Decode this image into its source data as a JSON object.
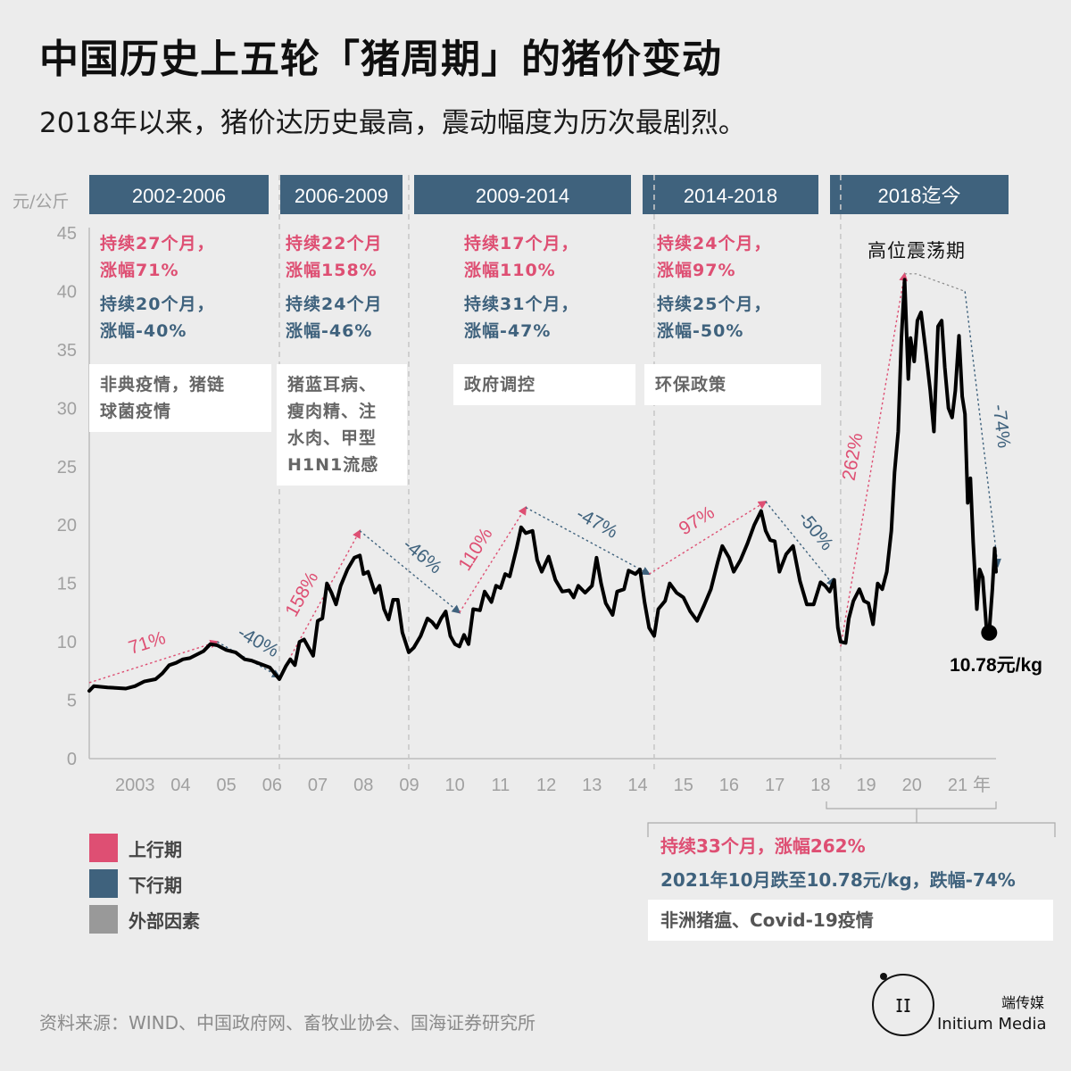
{
  "header": {
    "title": "中国历史上五轮「猪周期」的猪价变动",
    "subtitle": "2018年以来，猪价达历史最高，震动幅度为历次最剧烈。"
  },
  "colors": {
    "up": "#de4f73",
    "down": "#3f627d",
    "external": "#999999",
    "header_band": "#3f627d",
    "line": "#000000"
  },
  "cycles": [
    {
      "label": "2002-2006",
      "up_text": "持续27个月，\n涨幅71%",
      "down_text": "持续20个月，\n涨幅-40%",
      "external_text": "非典疫情，猪链\n球菌疫情"
    },
    {
      "label": "2006-2009",
      "up_text": "持续22个月\n涨幅158%",
      "down_text": "持续24个月\n涨幅-46%",
      "external_text": "猪蓝耳病、\n瘦肉精、注\n水肉、甲型\nH1N1流感"
    },
    {
      "label": "2009-2014",
      "up_text": "持续17个月，\n涨幅110%",
      "down_text": "持续31个月，\n涨幅-47%",
      "external_text": "政府调控"
    },
    {
      "label": "2014-2018",
      "up_text": "持续24个月，\n涨幅97%",
      "down_text": "持续25个月，\n涨幅-50%",
      "external_text": "环保政策"
    },
    {
      "label": "2018迄今",
      "phase_label": "高位震荡期"
    }
  ],
  "legend": [
    {
      "label": "上行期",
      "color": "#de4f73"
    },
    {
      "label": "下行期",
      "color": "#3f627d"
    },
    {
      "label": "外部因素",
      "color": "#999999"
    }
  ],
  "box_2018": {
    "up": "持续33个月，涨幅262%",
    "down": "2021年10月跌至10.78元/kg，跌幅-74%",
    "external": "非洲猪瘟、Covid-19疫情"
  },
  "source": "资料来源：WIND、中国政府网、畜牧业协会、国海证券研究所",
  "brand": {
    "cn": "端传媒",
    "en": "Initium Media"
  },
  "chart_data": {
    "type": "line",
    "ylabel": "元/公斤",
    "xlabel": "年",
    "ylim": [
      0,
      45
    ],
    "yticks": [
      0,
      5,
      10,
      15,
      20,
      25,
      30,
      35,
      40,
      45
    ],
    "xlim": [
      2002.0,
      2021.84
    ],
    "xtick_labels": [
      {
        "x": 2003.0,
        "label": "2003"
      },
      {
        "x": 2004.0,
        "label": "04"
      },
      {
        "x": 2005.0,
        "label": "05"
      },
      {
        "x": 2006.0,
        "label": "06"
      },
      {
        "x": 2007.0,
        "label": "07"
      },
      {
        "x": 2008.0,
        "label": "08"
      },
      {
        "x": 2009.0,
        "label": "09"
      },
      {
        "x": 2010.0,
        "label": "10"
      },
      {
        "x": 2011.0,
        "label": "11"
      },
      {
        "x": 2012.0,
        "label": "12"
      },
      {
        "x": 2013.0,
        "label": "13"
      },
      {
        "x": 2014.0,
        "label": "14"
      },
      {
        "x": 2015.0,
        "label": "15"
      },
      {
        "x": 2016.0,
        "label": "16"
      },
      {
        "x": 2017.0,
        "label": "17"
      },
      {
        "x": 2018.0,
        "label": "18"
      },
      {
        "x": 2019.0,
        "label": "19"
      },
      {
        "x": 2020.0,
        "label": "20"
      },
      {
        "x": 2021.0,
        "label": "21"
      },
      {
        "x": 2021.92,
        "label": "年"
      }
    ],
    "cycle_boundaries": [
      2006.16,
      2008.99,
      2014.36,
      2018.44
    ],
    "series": [
      {
        "values": [
          [
            2002.0,
            5.8
          ],
          [
            2002.1,
            6.2
          ],
          [
            2002.4,
            6.1
          ],
          [
            2002.8,
            6.0
          ],
          [
            2003.0,
            6.2
          ],
          [
            2003.2,
            6.6
          ],
          [
            2003.45,
            6.8
          ],
          [
            2003.6,
            7.3
          ],
          [
            2003.75,
            8.0
          ],
          [
            2003.9,
            8.2
          ],
          [
            2004.05,
            8.5
          ],
          [
            2004.2,
            8.6
          ],
          [
            2004.35,
            8.9
          ],
          [
            2004.5,
            9.2
          ],
          [
            2004.65,
            9.8
          ],
          [
            2004.8,
            9.7
          ],
          [
            2005.0,
            9.3
          ],
          [
            2005.2,
            9.1
          ],
          [
            2005.4,
            8.5
          ],
          [
            2005.55,
            8.4
          ],
          [
            2005.75,
            8.1
          ],
          [
            2005.95,
            7.8
          ],
          [
            2006.16,
            6.8
          ],
          [
            2006.3,
            7.9
          ],
          [
            2006.4,
            8.5
          ],
          [
            2006.5,
            8.0
          ],
          [
            2006.6,
            10.0
          ],
          [
            2006.7,
            10.2
          ],
          [
            2006.8,
            9.5
          ],
          [
            2006.9,
            8.8
          ],
          [
            2007.0,
            11.8
          ],
          [
            2007.1,
            12.0
          ],
          [
            2007.2,
            15.0
          ],
          [
            2007.3,
            14.2
          ],
          [
            2007.4,
            13.2
          ],
          [
            2007.5,
            14.8
          ],
          [
            2007.65,
            16.2
          ],
          [
            2007.8,
            17.2
          ],
          [
            2007.92,
            17.4
          ],
          [
            2008.0,
            15.8
          ],
          [
            2008.1,
            16.0
          ],
          [
            2008.25,
            14.2
          ],
          [
            2008.35,
            14.8
          ],
          [
            2008.45,
            12.8
          ],
          [
            2008.55,
            11.9
          ],
          [
            2008.65,
            13.6
          ],
          [
            2008.75,
            13.6
          ],
          [
            2008.85,
            10.8
          ],
          [
            2008.99,
            9.1
          ],
          [
            2009.1,
            9.5
          ],
          [
            2009.25,
            10.5
          ],
          [
            2009.4,
            12.0
          ],
          [
            2009.5,
            11.7
          ],
          [
            2009.6,
            11.2
          ],
          [
            2009.7,
            12.0
          ],
          [
            2009.8,
            12.6
          ],
          [
            2009.9,
            10.5
          ],
          [
            2010.0,
            9.8
          ],
          [
            2010.1,
            9.6
          ],
          [
            2010.2,
            10.6
          ],
          [
            2010.3,
            9.8
          ],
          [
            2010.4,
            12.8
          ],
          [
            2010.55,
            12.7
          ],
          [
            2010.65,
            14.3
          ],
          [
            2010.8,
            13.4
          ],
          [
            2010.9,
            14.8
          ],
          [
            2011.0,
            14.6
          ],
          [
            2011.1,
            15.8
          ],
          [
            2011.2,
            15.6
          ],
          [
            2011.35,
            18.0
          ],
          [
            2011.45,
            19.8
          ],
          [
            2011.55,
            19.3
          ],
          [
            2011.7,
            19.5
          ],
          [
            2011.8,
            17.0
          ],
          [
            2011.9,
            16.0
          ],
          [
            2012.05,
            17.3
          ],
          [
            2012.2,
            15.3
          ],
          [
            2012.35,
            14.3
          ],
          [
            2012.5,
            14.4
          ],
          [
            2012.6,
            13.8
          ],
          [
            2012.7,
            14.8
          ],
          [
            2012.85,
            14.2
          ],
          [
            2013.0,
            14.8
          ],
          [
            2013.1,
            17.2
          ],
          [
            2013.2,
            15.0
          ],
          [
            2013.3,
            13.3
          ],
          [
            2013.45,
            12.3
          ],
          [
            2013.55,
            14.3
          ],
          [
            2013.7,
            14.5
          ],
          [
            2013.8,
            16.1
          ],
          [
            2013.95,
            15.8
          ],
          [
            2014.05,
            16.2
          ],
          [
            2014.15,
            13.4
          ],
          [
            2014.25,
            11.2
          ],
          [
            2014.36,
            10.5
          ],
          [
            2014.45,
            12.8
          ],
          [
            2014.6,
            13.5
          ],
          [
            2014.7,
            15.0
          ],
          [
            2014.85,
            14.2
          ],
          [
            2015.0,
            13.8
          ],
          [
            2015.15,
            12.6
          ],
          [
            2015.3,
            11.8
          ],
          [
            2015.45,
            13.1
          ],
          [
            2015.6,
            14.5
          ],
          [
            2015.75,
            16.8
          ],
          [
            2015.85,
            18.2
          ],
          [
            2016.0,
            17.2
          ],
          [
            2016.1,
            16.0
          ],
          [
            2016.25,
            17.0
          ],
          [
            2016.4,
            18.4
          ],
          [
            2016.55,
            20.0
          ],
          [
            2016.7,
            21.2
          ],
          [
            2016.8,
            19.5
          ],
          [
            2016.9,
            18.7
          ],
          [
            2017.0,
            18.6
          ],
          [
            2017.1,
            16.0
          ],
          [
            2017.25,
            17.5
          ],
          [
            2017.4,
            18.2
          ],
          [
            2017.55,
            15.2
          ],
          [
            2017.7,
            13.2
          ],
          [
            2017.85,
            13.2
          ],
          [
            2018.0,
            15.1
          ],
          [
            2018.1,
            14.8
          ],
          [
            2018.2,
            14.3
          ],
          [
            2018.3,
            15.3
          ],
          [
            2018.38,
            11.2
          ],
          [
            2018.44,
            10.0
          ],
          [
            2018.55,
            9.9
          ],
          [
            2018.62,
            12.0
          ],
          [
            2018.72,
            13.5
          ],
          [
            2018.85,
            14.5
          ],
          [
            2018.95,
            13.5
          ],
          [
            2019.05,
            13.3
          ],
          [
            2019.15,
            11.5
          ],
          [
            2019.25,
            15.0
          ],
          [
            2019.35,
            14.5
          ],
          [
            2019.45,
            16.0
          ],
          [
            2019.55,
            19.5
          ],
          [
            2019.62,
            24.5
          ],
          [
            2019.7,
            28.0
          ],
          [
            2019.77,
            36.0
          ],
          [
            2019.84,
            41.0
          ],
          [
            2019.92,
            32.5
          ],
          [
            2019.97,
            36.0
          ],
          [
            2020.05,
            34.0
          ],
          [
            2020.12,
            37.5
          ],
          [
            2020.2,
            38.2
          ],
          [
            2020.3,
            35.0
          ],
          [
            2020.4,
            31.5
          ],
          [
            2020.48,
            28.0
          ],
          [
            2020.57,
            37.0
          ],
          [
            2020.65,
            37.5
          ],
          [
            2020.72,
            33.5
          ],
          [
            2020.8,
            30.0
          ],
          [
            2020.88,
            29.2
          ],
          [
            2020.95,
            31.5
          ],
          [
            2021.03,
            36.2
          ],
          [
            2021.1,
            31.0
          ],
          [
            2021.16,
            29.5
          ],
          [
            2021.22,
            21.9
          ],
          [
            2021.28,
            24.0
          ],
          [
            2021.34,
            18.5
          ],
          [
            2021.42,
            12.8
          ],
          [
            2021.48,
            16.2
          ],
          [
            2021.55,
            15.5
          ],
          [
            2021.63,
            11.2
          ],
          [
            2021.69,
            10.78
          ],
          [
            2021.76,
            14.5
          ],
          [
            2021.81,
            18.0
          ],
          [
            2021.84,
            16.0
          ]
        ]
      }
    ],
    "segments": [
      {
        "x1": 2002.0,
        "y1": 6.5,
        "x2": 2004.8,
        "y2": 10.0,
        "label": "71%",
        "kind": "up"
      },
      {
        "x1": 2004.8,
        "y1": 10.0,
        "x2": 2006.16,
        "y2": 7.0,
        "label": "-40%",
        "kind": "down"
      },
      {
        "x1": 2006.16,
        "y1": 7.0,
        "x2": 2007.92,
        "y2": 19.5,
        "label": "158%",
        "kind": "up"
      },
      {
        "x1": 2007.92,
        "y1": 19.5,
        "x2": 2010.1,
        "y2": 12.5,
        "label": "-46%",
        "kind": "down"
      },
      {
        "x1": 2010.1,
        "y1": 12.5,
        "x2": 2011.55,
        "y2": 21.5,
        "label": "110%",
        "kind": "up"
      },
      {
        "x1": 2011.55,
        "y1": 21.5,
        "x2": 2014.25,
        "y2": 15.8,
        "label": "-47%",
        "kind": "down"
      },
      {
        "x1": 2014.25,
        "y1": 15.8,
        "x2": 2016.8,
        "y2": 22.0,
        "label": "97%",
        "kind": "up"
      },
      {
        "x1": 2016.8,
        "y1": 22.0,
        "x2": 2018.3,
        "y2": 14.8,
        "label": "-50%",
        "kind": "down"
      },
      {
        "x1": 2018.44,
        "y1": 9.6,
        "x2": 2019.84,
        "y2": 41.5,
        "label": "262%",
        "kind": "up"
      },
      {
        "x1": 2021.16,
        "y1": 40.0,
        "x2": 2021.88,
        "y2": 16.5,
        "label": "-74%",
        "kind": "down"
      }
    ],
    "annotations": [
      {
        "x": 2021.69,
        "y": 10.78,
        "label": "10.78元/kg"
      }
    ]
  }
}
